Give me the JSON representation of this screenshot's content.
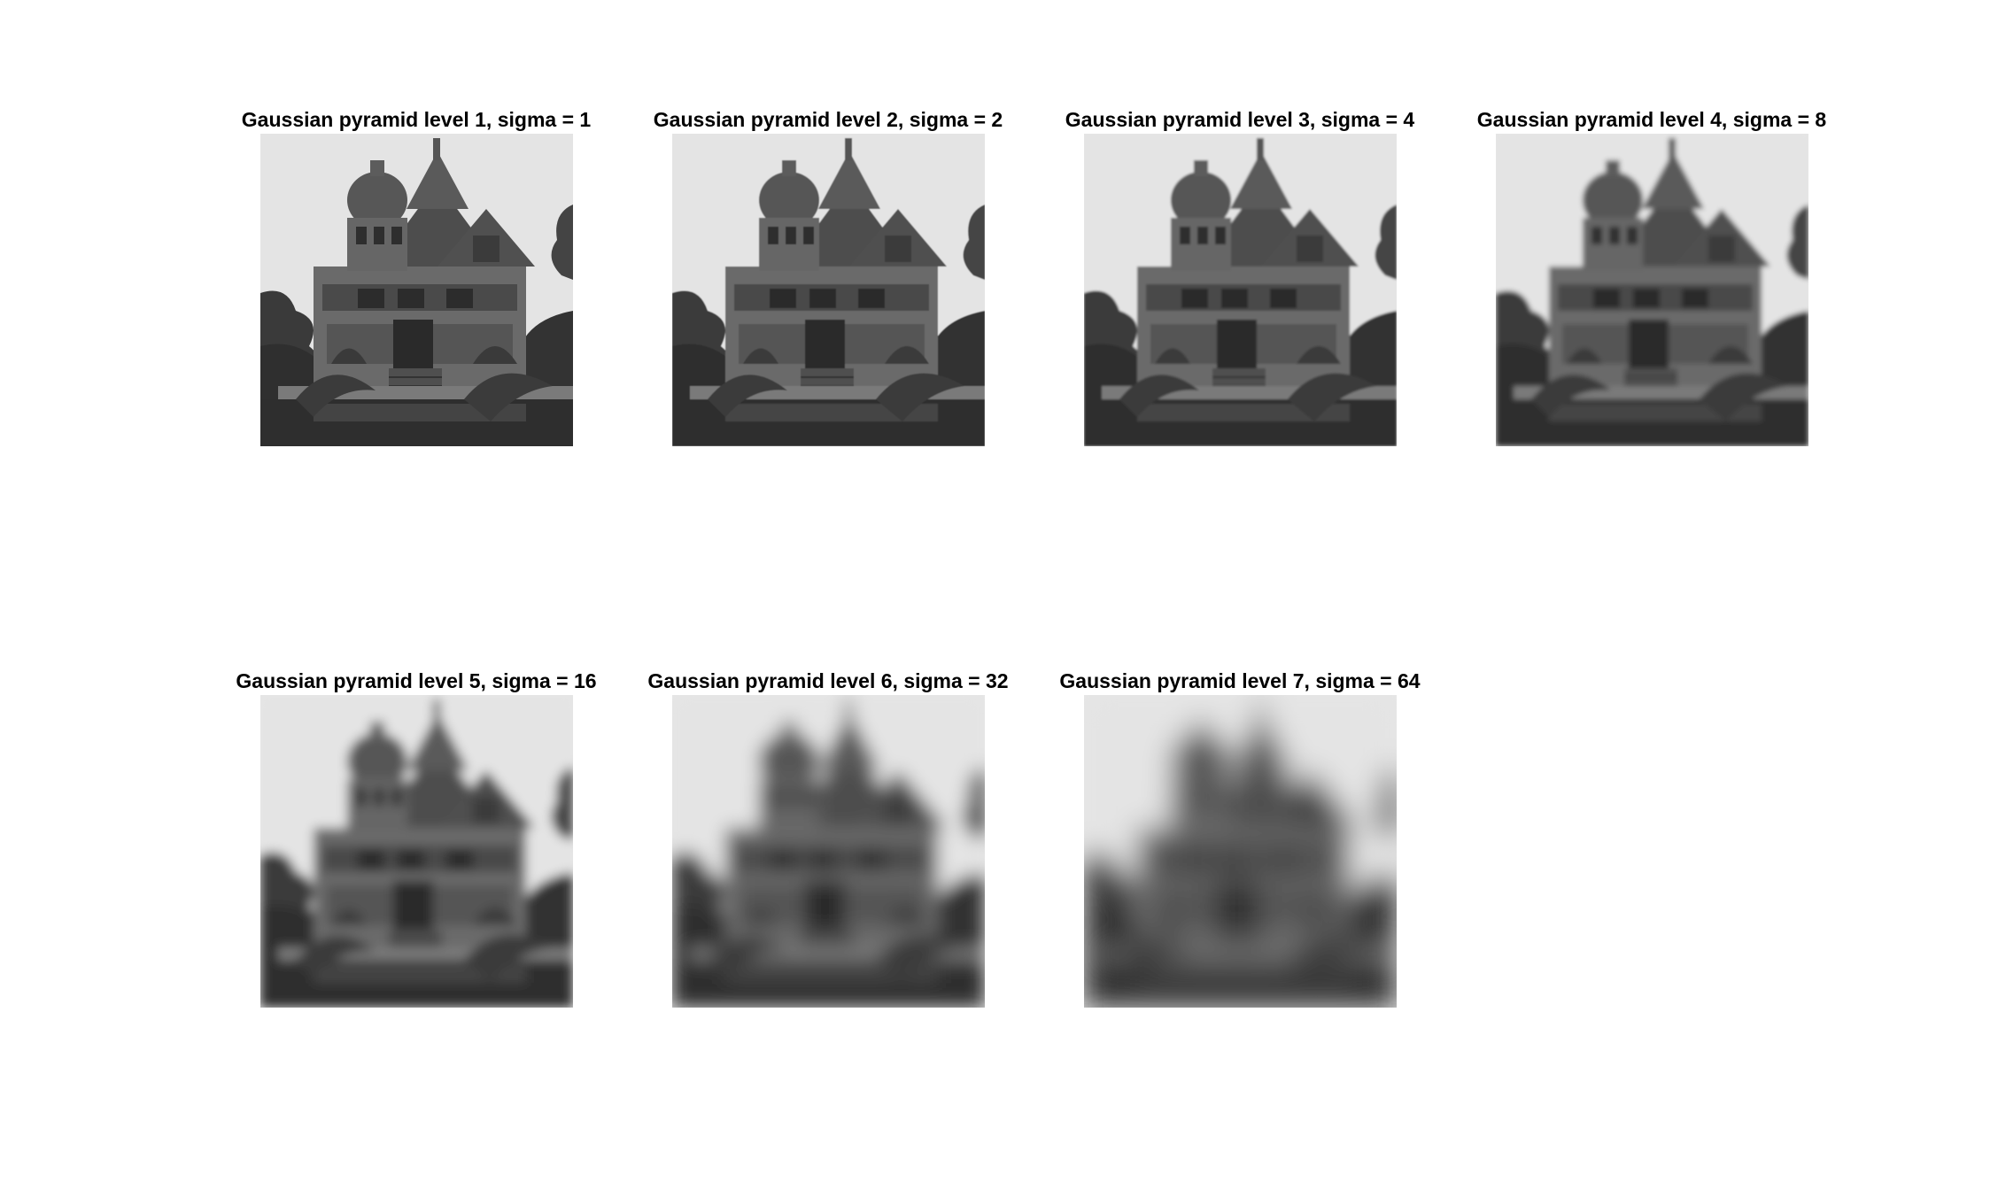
{
  "figure": {
    "panels": [
      {
        "title": "Gaussian pyramid level 1, sigma = 1",
        "image": "grayscale-victorian-mansion-photo",
        "sigma": 1,
        "level": 1
      },
      {
        "title": "Gaussian pyramid level 2, sigma = 2",
        "image": "grayscale-victorian-mansion-photo",
        "sigma": 2,
        "level": 2
      },
      {
        "title": "Gaussian pyramid level 3, sigma = 4",
        "image": "grayscale-victorian-mansion-photo",
        "sigma": 4,
        "level": 3
      },
      {
        "title": "Gaussian pyramid level 4, sigma = 8",
        "image": "grayscale-victorian-mansion-photo",
        "sigma": 8,
        "level": 4
      },
      {
        "title": "Gaussian pyramid level 5, sigma = 16",
        "image": "grayscale-victorian-mansion-photo",
        "sigma": 16,
        "level": 5
      },
      {
        "title": "Gaussian pyramid level 6, sigma = 32",
        "image": "grayscale-victorian-mansion-photo",
        "sigma": 32,
        "level": 6
      },
      {
        "title": "Gaussian pyramid level 7, sigma = 64",
        "image": "grayscale-victorian-mansion-photo",
        "sigma": 64,
        "level": 7
      }
    ]
  }
}
